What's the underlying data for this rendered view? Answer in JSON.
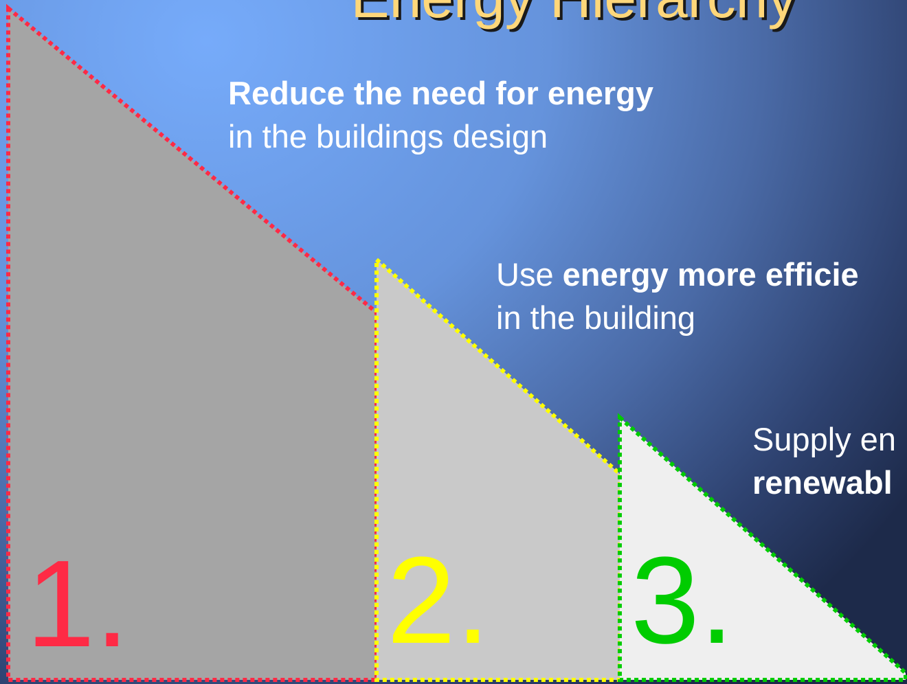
{
  "title": "Energy Hierarchy",
  "steps": [
    {
      "number": "1.",
      "lines": [
        [
          {
            "text": "Reduce the need for energy",
            "bold": true
          }
        ],
        [
          {
            "text": "in the buildings design",
            "bold": false
          }
        ]
      ]
    },
    {
      "number": "2.",
      "lines": [
        [
          {
            "text": "Use ",
            "bold": false
          },
          {
            "text": "energy more efficie",
            "bold": true
          }
        ],
        [
          {
            "text": "in the building",
            "bold": false
          }
        ]
      ]
    },
    {
      "number": "3.",
      "lines": [
        [
          {
            "text": "Supply en",
            "bold": false
          }
        ],
        [
          {
            "text": "renewabl",
            "bold": true
          }
        ]
      ]
    }
  ]
}
